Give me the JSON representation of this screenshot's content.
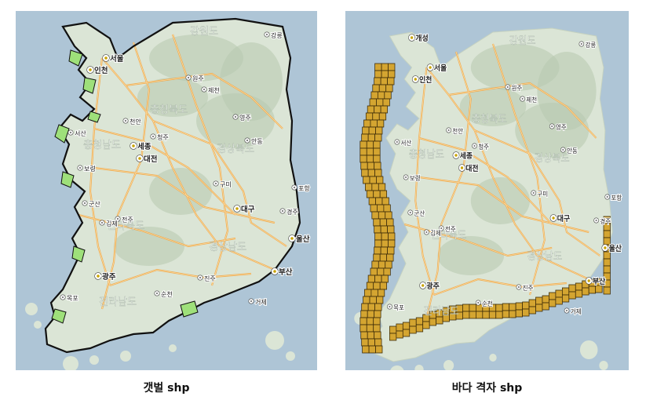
{
  "captions": {
    "left": "갯벌 shp",
    "right": "바다 격자 shp"
  },
  "colors": {
    "sea": "#aec5d6",
    "land": "#dbe5d6",
    "mountain": "#b7c8ae",
    "road": "#f0a94a",
    "tidal_flat": "#9ee07a",
    "grid_fill": "#d4a531",
    "grid_stroke": "#3b2a08"
  },
  "cities": [
    {
      "name": "서울",
      "kind": "capital"
    },
    {
      "name": "인천",
      "kind": "city"
    },
    {
      "name": "세종",
      "kind": "city"
    },
    {
      "name": "대전",
      "kind": "city"
    },
    {
      "name": "대구",
      "kind": "city"
    },
    {
      "name": "광주",
      "kind": "city"
    },
    {
      "name": "울산",
      "kind": "city"
    },
    {
      "name": "부산",
      "kind": "city"
    },
    {
      "name": "개성",
      "kind": "city"
    },
    {
      "name": "포항",
      "kind": "town"
    },
    {
      "name": "경주",
      "kind": "town"
    },
    {
      "name": "강릉",
      "kind": "town"
    },
    {
      "name": "제천",
      "kind": "town"
    },
    {
      "name": "영주",
      "kind": "town"
    },
    {
      "name": "청주",
      "kind": "town"
    },
    {
      "name": "천안",
      "kind": "town"
    },
    {
      "name": "전주",
      "kind": "town"
    },
    {
      "name": "김제",
      "kind": "town"
    },
    {
      "name": "목포",
      "kind": "town"
    },
    {
      "name": "진주",
      "kind": "town"
    },
    {
      "name": "거제",
      "kind": "town"
    },
    {
      "name": "구미",
      "kind": "town"
    },
    {
      "name": "안동",
      "kind": "town"
    },
    {
      "name": "원주",
      "kind": "town"
    },
    {
      "name": "군산",
      "kind": "town"
    },
    {
      "name": "서산",
      "kind": "town"
    },
    {
      "name": "보령",
      "kind": "town"
    },
    {
      "name": "순천",
      "kind": "town"
    }
  ],
  "regions": [
    "강원도",
    "충청북도",
    "충청남도",
    "경상북도",
    "전라북도",
    "전라남도",
    "경상남도"
  ]
}
